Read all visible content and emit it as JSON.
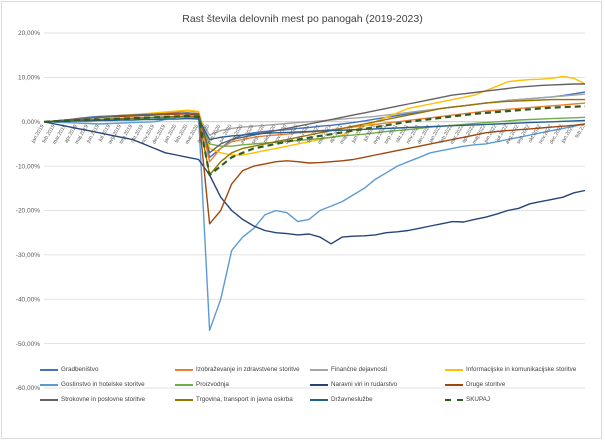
{
  "chart_data": {
    "type": "line",
    "title": "Rast števila delovnih mest po panogah (2019-2023)",
    "xlabel": "",
    "ylabel": "",
    "ylim": [
      -60,
      20
    ],
    "y_ticks": [
      "20,00%",
      "10,00%",
      "0,00%",
      "-10,00%",
      "-20,00%",
      "-30,00%",
      "-40,00%",
      "-50,00%",
      "-60,00%"
    ],
    "grid": true,
    "legend_position": "bottom",
    "x": [
      "jan.2019",
      "feb.2019",
      "mar.2019",
      "apr.2019",
      "maj.2019",
      "jun.2019",
      "jul.2019",
      "avg.2019",
      "sep.2019",
      "okt.2019",
      "nov.2019",
      "dec.2019",
      "jan.2020",
      "feb.2020",
      "mar.2020",
      "apr.2020",
      "maj.2020",
      "jun.2020",
      "jul.2020",
      "avg.2020",
      "sep.2020",
      "okt.2020",
      "nov.2020",
      "dec.2020",
      "jan.2021",
      "feb.2021",
      "mar.2021",
      "apr.2021",
      "maj.2021",
      "jun.2021",
      "jul.2021",
      "avg.2021",
      "sep.2021",
      "okt.2021",
      "nov.2021",
      "dec.2021",
      "jan.2022",
      "feb.2022",
      "mar.2022",
      "apr.2022",
      "maj.2022",
      "jun.2022",
      "jul.2022",
      "avg.2022",
      "sep.2022",
      "okt.2022",
      "nov.2022",
      "dec.2022",
      "jan.2023",
      "feb.2023"
    ],
    "x_tick_labels": [
      "jan.2019",
      "feb.2019",
      "mar.2019",
      "apr.2019",
      "maj.2019",
      "jun.2019",
      "jul.2019",
      "avg.2019",
      "sep.2019",
      "okt.2019",
      "nov.2019",
      "dec.2019",
      "jan.2020",
      "feb.2020",
      "mar.2020",
      "apr.2020",
      "maj.2020",
      "jun.2020",
      "jul.2020",
      "avg.2020",
      "sep.2020",
      "okt.2020",
      "nov.2020",
      "dec.2020",
      "jan.2021",
      "feb.2021",
      "mar.2021",
      "apr.2021",
      "maj.2021",
      "jun.2021",
      "jul.2021",
      "avg.2021",
      "sep.2021",
      "okt.2021",
      "nov.2021",
      "dec.2021",
      "jan.2022",
      "feb.2022",
      "mar.2022",
      "apr.2022",
      "maj.2022",
      "jun.2022",
      "jul.2022",
      "avg.2022",
      "sep.2022",
      "okt.2022",
      "nov.2022",
      "dec.2022",
      "jan.2023",
      "feb.23"
    ],
    "series": [
      {
        "name": "Gradbeništvo",
        "color": "#4472c4",
        "dashed": false,
        "values": [
          0,
          0.2,
          0.4,
          0.7,
          1.0,
          1.2,
          1.3,
          1.4,
          1.5,
          1.6,
          1.7,
          1.8,
          1.9,
          2.0,
          1.8,
          -8,
          -6,
          -4,
          -3,
          -2.5,
          -2.2,
          -2,
          -1.8,
          -1.5,
          -1.3,
          -1.0,
          -0.8,
          -0.5,
          -0.2,
          0.2,
          0.6,
          1.0,
          1.4,
          1.8,
          2.2,
          2.6,
          3.0,
          3.3,
          3.6,
          3.9,
          4.2,
          4.5,
          4.8,
          5.0,
          5.2,
          5.4,
          5.6,
          5.9,
          6.3,
          6.7
        ]
      },
      {
        "name": "Izobraževanje in zdravstvene storitve",
        "color": "#ed7d31",
        "dashed": false,
        "values": [
          0,
          0.2,
          0.4,
          0.6,
          0.8,
          1.0,
          1.2,
          1.3,
          1.4,
          1.6,
          1.8,
          2.0,
          2.2,
          2.5,
          2.2,
          -9,
          -6,
          -4.5,
          -4,
          -3.5,
          -3.2,
          -3.0,
          -2.8,
          -2.5,
          -2.3,
          -2.0,
          -1.8,
          -1.5,
          -1.2,
          -0.9,
          -0.6,
          -0.3,
          0,
          0.3,
          0.6,
          0.9,
          1.2,
          1.5,
          1.8,
          2.1,
          2.4,
          2.6,
          2.8,
          3.0,
          3.2,
          3.4,
          3.6,
          3.8,
          4.0,
          4.2
        ]
      },
      {
        "name": "Finančne dejavnosti",
        "color": "#a5a5a5",
        "dashed": false,
        "values": [
          0,
          0.1,
          0.2,
          0.3,
          0.4,
          0.5,
          0.6,
          0.7,
          0.8,
          0.9,
          1.0,
          1.1,
          1.2,
          1.3,
          1.1,
          -3,
          -2,
          -1.5,
          -1.2,
          -1.0,
          -0.8,
          -0.6,
          -0.4,
          -0.2,
          0,
          0.2,
          0.4,
          0.6,
          0.8,
          1.0,
          1.2,
          1.5,
          1.8,
          2.1,
          2.4,
          2.7,
          3.0,
          3.3,
          3.6,
          3.9,
          4.2,
          4.5,
          4.8,
          5.0,
          5.2,
          5.4,
          5.6,
          5.8,
          6.0,
          6.2
        ]
      },
      {
        "name": "Informacijske in komunikacijske storitve",
        "color": "#ffc000",
        "dashed": false,
        "values": [
          0,
          0.2,
          0.4,
          0.6,
          0.8,
          1.0,
          1.2,
          1.4,
          1.6,
          1.8,
          2.0,
          2.2,
          2.4,
          2.6,
          2.3,
          -6,
          -7,
          -7.5,
          -7.5,
          -7,
          -6.5,
          -6,
          -5.5,
          -5,
          -4.5,
          -4,
          -3.5,
          -3,
          -2,
          -1,
          0,
          1,
          2,
          3,
          3.5,
          4,
          4.5,
          5,
          5.5,
          6,
          7,
          8,
          9,
          9.3,
          9.5,
          9.6,
          9.8,
          10.2,
          9.8,
          8.5
        ]
      },
      {
        "name": "Gostinstvo in hotelske storitve",
        "color": "#5b9bd5",
        "dashed": false,
        "values": [
          0,
          -0.1,
          -0.2,
          -0.3,
          -0.4,
          -0.5,
          -0.4,
          -0.3,
          -0.2,
          -0.1,
          0,
          0.5,
          1.0,
          1.5,
          1.0,
          -47,
          -40,
          -29,
          -26,
          -24,
          -21,
          -20,
          -20.5,
          -22.5,
          -22,
          -20,
          -19,
          -18,
          -16.5,
          -15,
          -13,
          -11.5,
          -10,
          -9,
          -8,
          -7,
          -6.5,
          -6,
          -5.5,
          -5.2,
          -5,
          -4.5,
          -4,
          -3.5,
          -3,
          -2.5,
          -2,
          -1.5,
          -1,
          -0.5
        ]
      },
      {
        "name": "Proizvodnja",
        "color": "#70ad47",
        "dashed": false,
        "values": [
          0,
          0.1,
          0.2,
          0.3,
          0.4,
          0.5,
          0.6,
          0.7,
          0.8,
          0.8,
          0.9,
          0.9,
          1.0,
          1.0,
          0.8,
          -5,
          -5.5,
          -5.5,
          -5.2,
          -5,
          -4.8,
          -4.6,
          -4.4,
          -4.2,
          -4,
          -3.8,
          -3.5,
          -3.2,
          -3,
          -2.8,
          -2.5,
          -2.2,
          -2,
          -1.8,
          -1.5,
          -1.2,
          -1,
          -0.8,
          -0.6,
          -0.4,
          -0.2,
          0,
          0.2,
          0.4,
          0.5,
          0.6,
          0.7,
          0.8,
          0.9,
          1.0
        ]
      },
      {
        "name": "Naravni viri in rudarstvo",
        "color": "#264478",
        "dashed": false,
        "values": [
          0,
          -0.5,
          -1,
          -1.5,
          -2,
          -2.5,
          -3,
          -3.5,
          -4,
          -5,
          -6,
          -7,
          -7.5,
          -8,
          -8.5,
          -12,
          -17,
          -20,
          -22,
          -23.5,
          -24.5,
          -25,
          -25.2,
          -25.5,
          -25.3,
          -26,
          -27.5,
          -26,
          -25.8,
          -25.7,
          -25.5,
          -25,
          -24.8,
          -24.5,
          -24,
          -23.5,
          -23,
          -22.5,
          -22.6,
          -22,
          -21.5,
          -20.8,
          -20,
          -19.5,
          -18.5,
          -18,
          -17.5,
          -17,
          -16,
          -15.5
        ]
      },
      {
        "name": "Druge storitve",
        "color": "#9e480e",
        "dashed": false,
        "values": [
          0,
          0.2,
          0.4,
          0.6,
          0.8,
          1.0,
          1.1,
          1.2,
          1.3,
          1.4,
          1.5,
          1.6,
          1.7,
          1.8,
          1.5,
          -23,
          -20,
          -14,
          -11,
          -10,
          -9.5,
          -9,
          -8.8,
          -9,
          -9.3,
          -9.2,
          -9,
          -8.8,
          -8.5,
          -8,
          -7.5,
          -7,
          -6.5,
          -6,
          -5.5,
          -5,
          -4.5,
          -4,
          -3.5,
          -3,
          -2.5,
          -2.2,
          -2,
          -1.8,
          -1.6,
          -1.4,
          -1.2,
          -1.0,
          -0.8,
          -0.5
        ]
      },
      {
        "name": "Strokovne in poslovne storitve",
        "color": "#636363",
        "dashed": false,
        "values": [
          0,
          0.2,
          0.4,
          0.6,
          0.8,
          1.0,
          1.2,
          1.4,
          1.5,
          1.6,
          1.7,
          1.8,
          1.9,
          2.0,
          1.8,
          -7,
          -5,
          -4,
          -3.5,
          -3,
          -2.5,
          -2,
          -1.5,
          -1,
          -0.5,
          0,
          0.5,
          1.0,
          1.5,
          2.0,
          2.5,
          3.0,
          3.5,
          4.0,
          4.5,
          5.0,
          5.5,
          6.0,
          6.3,
          6.6,
          6.9,
          7.2,
          7.5,
          7.8,
          8.0,
          8.2,
          8.3,
          8.4,
          8.5,
          8.5
        ]
      },
      {
        "name": "Trgovina, transport in javna oskrba",
        "color": "#997300",
        "dashed": false,
        "values": [
          0,
          0.1,
          0.2,
          0.3,
          0.4,
          0.5,
          0.6,
          0.7,
          0.8,
          0.9,
          1.0,
          1.1,
          1.2,
          1.3,
          1.1,
          -12,
          -9,
          -7,
          -6,
          -5.5,
          -5,
          -4.5,
          -4,
          -3.5,
          -3,
          -2.5,
          -2,
          -1.5,
          -1,
          -0.5,
          0,
          0.5,
          1.0,
          1.5,
          2.0,
          2.5,
          3.0,
          3.3,
          3.6,
          3.9,
          4.2,
          4.4,
          4.6,
          4.7,
          4.8,
          4.9,
          5.0,
          5.0,
          5.0,
          5.0
        ]
      },
      {
        "name": "Državneslužbe",
        "color": "#255e91",
        "dashed": false,
        "values": [
          0,
          0.1,
          0.1,
          0.2,
          0.2,
          0.3,
          0.3,
          0.4,
          0.4,
          0.5,
          0.5,
          0.6,
          0.6,
          0.7,
          0.6,
          -4,
          -3.5,
          -3.2,
          -3,
          -2.8,
          -2.6,
          -2.5,
          -2.4,
          -2.3,
          -2.2,
          -2.1,
          -2.0,
          -1.9,
          -1.8,
          -1.7,
          -1.6,
          -1.5,
          -1.4,
          -1.3,
          -1.2,
          -1.1,
          -1.0,
          -0.9,
          -0.8,
          -0.7,
          -0.6,
          -0.5,
          -0.4,
          -0.3,
          -0.2,
          -0.1,
          0,
          0.1,
          0.2,
          0.3
        ]
      },
      {
        "name": "SKUPAJ",
        "color": "#2e5e1e",
        "dashed": true,
        "values": [
          0,
          0.1,
          0.2,
          0.3,
          0.4,
          0.5,
          0.6,
          0.7,
          0.8,
          0.9,
          1.0,
          1.1,
          1.2,
          1.3,
          1.1,
          -12,
          -10,
          -8,
          -7,
          -6,
          -5.5,
          -5,
          -4.5,
          -4,
          -3.6,
          -3.2,
          -2.8,
          -2.4,
          -2.0,
          -1.6,
          -1.2,
          -0.8,
          -0.4,
          0,
          0.3,
          0.6,
          0.9,
          1.2,
          1.5,
          1.8,
          2.0,
          2.2,
          2.4,
          2.6,
          2.8,
          3.0,
          3.2,
          3.3,
          3.4,
          3.5
        ]
      }
    ]
  }
}
